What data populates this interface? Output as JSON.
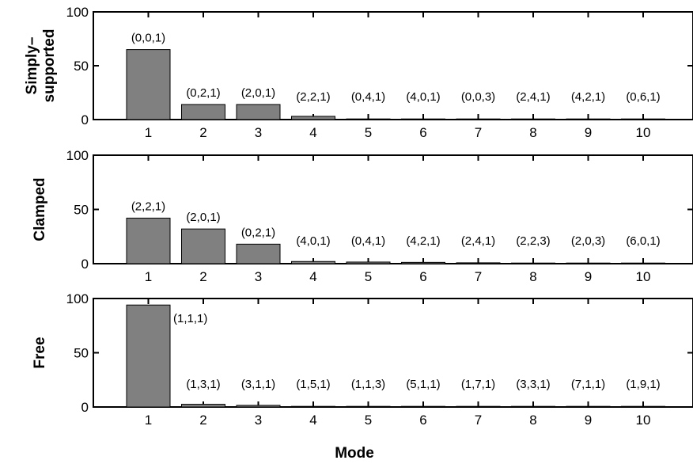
{
  "chart_data": [
    {
      "type": "bar",
      "ylabel": [
        "Simply–",
        "supported"
      ],
      "xlabel": "",
      "categories": [
        "1",
        "2",
        "3",
        "4",
        "5",
        "6",
        "7",
        "8",
        "9",
        "10"
      ],
      "values": [
        65,
        14,
        14,
        3,
        0.6,
        0.4,
        0.3,
        0.2,
        0.2,
        0.2
      ],
      "bar_labels": [
        "(0,0,1)",
        "(0,2,1)",
        "(2,0,1)",
        "(2,2,1)",
        "(0,4,1)",
        "(4,0,1)",
        "(0,0,3)",
        "(2,4,1)",
        "(4,2,1)",
        "(0,6,1)"
      ],
      "ylim": [
        0,
        100
      ],
      "yticks": [
        "0",
        "50",
        "100"
      ],
      "grid": false
    },
    {
      "type": "bar",
      "ylabel": [
        "Clamped"
      ],
      "xlabel": "",
      "categories": [
        "1",
        "2",
        "3",
        "4",
        "5",
        "6",
        "7",
        "8",
        "9",
        "10"
      ],
      "values": [
        42,
        32,
        18,
        2,
        1.5,
        1.2,
        0.8,
        0.4,
        0.3,
        0.2
      ],
      "bar_labels": [
        "(2,2,1)",
        "(2,0,1)",
        "(0,2,1)",
        "(4,0,1)",
        "(0,4,1)",
        "(4,2,1)",
        "(2,4,1)",
        "(2,2,3)",
        "(2,0,3)",
        "(6,0,1)"
      ],
      "ylim": [
        0,
        100
      ],
      "yticks": [
        "0",
        "50",
        "100"
      ],
      "grid": false
    },
    {
      "type": "bar",
      "ylabel": [
        "Free"
      ],
      "xlabel": "Mode",
      "categories": [
        "1",
        "2",
        "3",
        "4",
        "5",
        "6",
        "7",
        "8",
        "9",
        "10"
      ],
      "values": [
        94,
        2.5,
        1.5,
        0.5,
        0.4,
        0.3,
        0.3,
        0.2,
        0.2,
        0.2
      ],
      "bar_labels": [
        "(1,1,1)",
        "(1,3,1)",
        "(3,1,1)",
        "(1,5,1)",
        "(1,1,3)",
        "(5,1,1)",
        "(1,7,1)",
        "(3,3,1)",
        "(7,1,1)",
        "(1,9,1)"
      ],
      "ylim": [
        0,
        100
      ],
      "yticks": [
        "0",
        "50",
        "100"
      ],
      "grid": false
    }
  ]
}
